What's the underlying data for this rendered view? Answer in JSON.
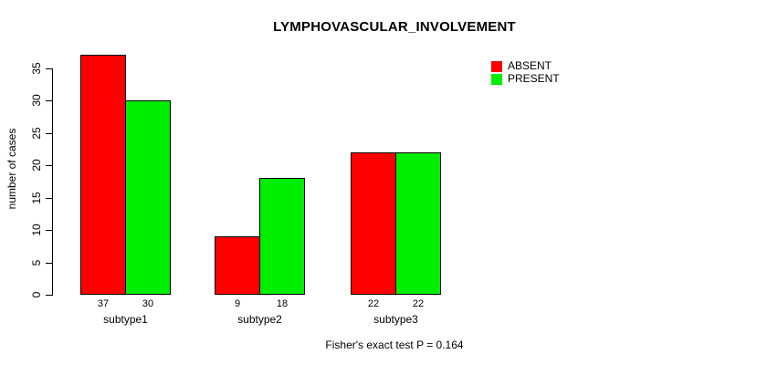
{
  "chart_data": {
    "type": "bar",
    "title": "LYMPHOVASCULAR_INVOLVEMENT",
    "categories": [
      "subtype1",
      "subtype2",
      "subtype3"
    ],
    "series": [
      {
        "name": "ABSENT",
        "color": "#ff0000",
        "values": [
          37,
          9,
          22
        ]
      },
      {
        "name": "PRESENT",
        "color": "#00ee00",
        "values": [
          30,
          18,
          22
        ]
      }
    ],
    "xlabel": "",
    "ylabel": "number of cases",
    "yticks": [
      0,
      5,
      10,
      15,
      20,
      25,
      30,
      35
    ],
    "ylim": [
      0,
      37
    ],
    "grid": false,
    "bar_value_labels_shown": true,
    "legend_position": "top-right",
    "annotation": "Fisher's exact test P = 0.164",
    "axis_color": "#000000",
    "background_color": "#ffffff"
  }
}
